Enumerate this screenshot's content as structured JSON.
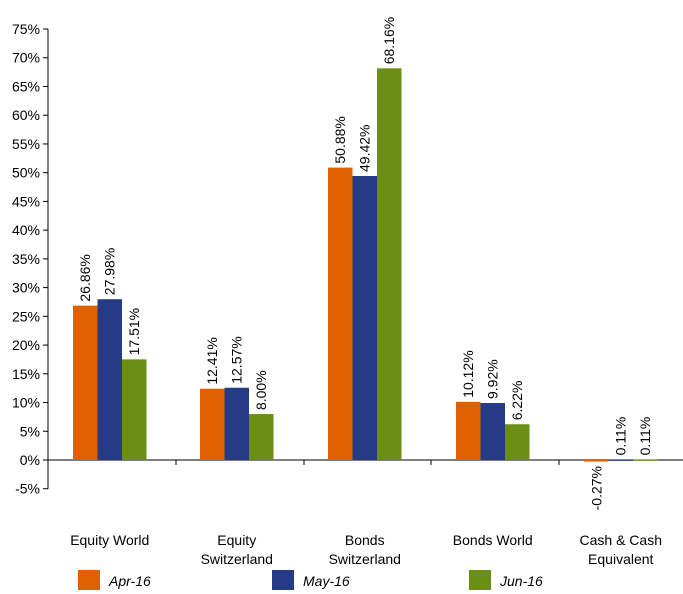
{
  "chart_data": {
    "type": "bar",
    "categories": [
      [
        "Equity World"
      ],
      [
        "Equity",
        "Switzerland"
      ],
      [
        "Bonds",
        "Switzerland"
      ],
      [
        "Bonds World"
      ],
      [
        "Cash & Cash",
        "Equivalent"
      ]
    ],
    "series": [
      {
        "name": "Apr-16",
        "color": "#e06000",
        "values": [
          26.86,
          12.41,
          50.88,
          10.12,
          -0.27
        ],
        "labels": [
          "26.86%",
          "12.41%",
          "50.88%",
          "10.12%",
          "-0.27%"
        ]
      },
      {
        "name": "May-16",
        "color": "#253b86",
        "values": [
          27.98,
          12.57,
          49.42,
          9.92,
          0.11
        ],
        "labels": [
          "27.98%",
          "12.57%",
          "49.42%",
          "9.92%",
          "0.11%"
        ]
      },
      {
        "name": "Jun-16",
        "color": "#6a8e16",
        "values": [
          17.51,
          8.0,
          68.16,
          6.22,
          0.11
        ],
        "labels": [
          "17.51%",
          "8.00%",
          "68.16%",
          "6.22%",
          "0.11%"
        ]
      }
    ],
    "ylim": [
      -5,
      75
    ],
    "yticks": [
      75,
      70,
      65,
      60,
      55,
      50,
      45,
      40,
      35,
      30,
      25,
      20,
      15,
      10,
      5,
      0,
      -5
    ],
    "ytick_labels": [
      "75%",
      "70%",
      "65%",
      "60%",
      "55%",
      "50%",
      "45%",
      "40%",
      "35%",
      "30%",
      "25%",
      "20%",
      "15%",
      "10%",
      "5%",
      "0%",
      "-5%"
    ],
    "grid": false,
    "legend": "bottom",
    "title": "",
    "xlabel": "",
    "ylabel": ""
  }
}
